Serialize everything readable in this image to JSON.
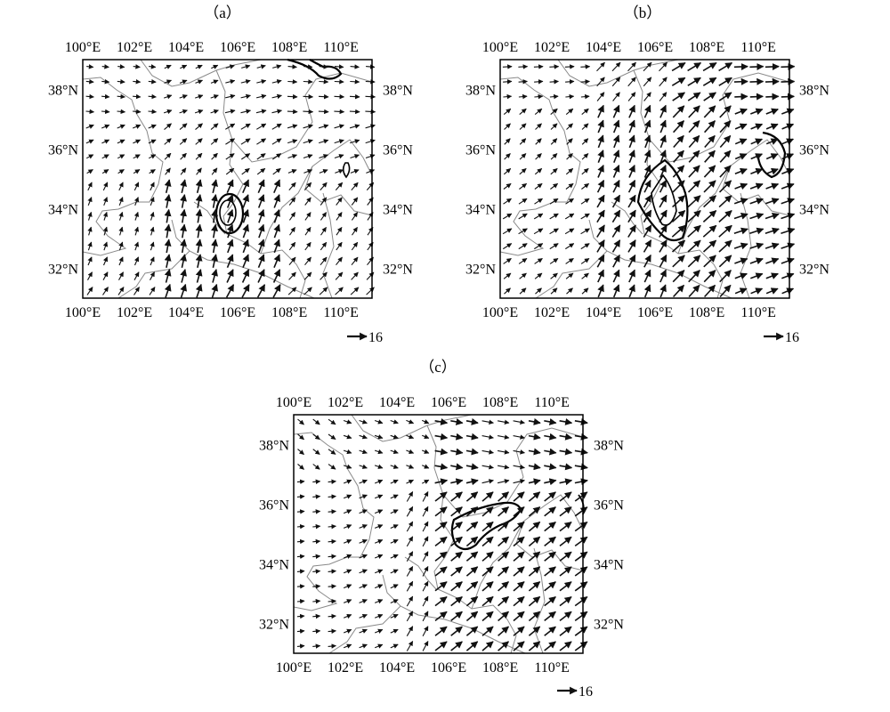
{
  "figure": {
    "panels": [
      {
        "id": "a",
        "label": "（a）",
        "lon_ticks": [
          "100°E",
          "102°E",
          "104°E",
          "106°E",
          "108°E",
          "110°E"
        ],
        "lat_ticks": [
          "38°N",
          "36°N",
          "34°N",
          "32°N"
        ],
        "reference_vector": {
          "label": "16",
          "magnitude": 16
        }
      },
      {
        "id": "b",
        "label": "（b）",
        "lon_ticks": [
          "100°E",
          "102°E",
          "104°E",
          "106°E",
          "108°E",
          "110°E"
        ],
        "lat_ticks": [
          "38°N",
          "36°N",
          "34°N",
          "32°N"
        ],
        "reference_vector": {
          "label": "16",
          "magnitude": 16
        }
      },
      {
        "id": "c",
        "label": "（c）",
        "lon_ticks": [
          "100°E",
          "102°E",
          "104°E",
          "106°E",
          "108°E",
          "110°E"
        ],
        "lat_ticks": [
          "38°N",
          "36°N",
          "34°N",
          "32°N"
        ],
        "reference_vector": {
          "label": "16",
          "magnitude": 16
        }
      }
    ],
    "map_extent": {
      "lon_min": 100,
      "lon_max": 111.2,
      "lat_min": 31,
      "lat_max": 39
    },
    "colors": {
      "vectors": "#111111",
      "boundaries": "#8a8a8a",
      "contour": "#000000",
      "frame": "#000000"
    }
  }
}
